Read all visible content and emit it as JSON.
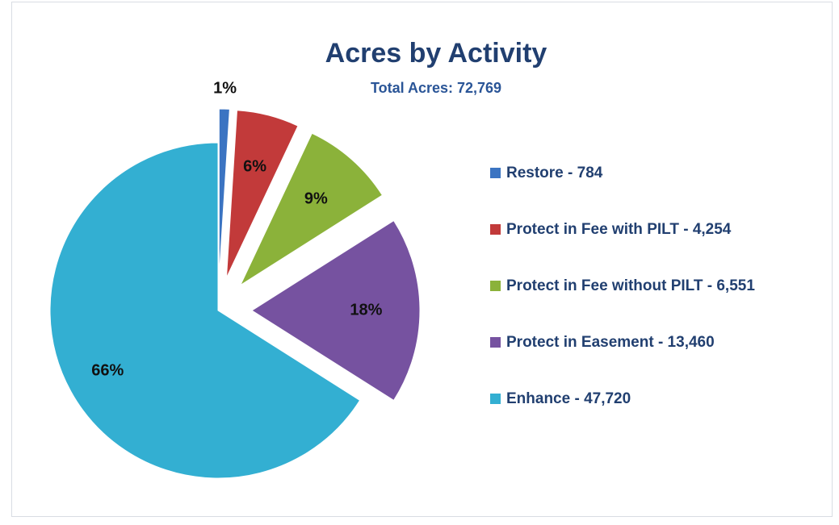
{
  "chart_data": {
    "type": "pie",
    "title": "Acres by Activity",
    "subtitle": "Total Acres: 72,769",
    "categories": [
      "Restore - 784",
      "Protect in Fee with PILT - 4,254",
      "Protect in Fee without PILT - 6,551",
      "Protect in Easement - 13,460",
      "Enhance - 47,720"
    ],
    "values": [
      1,
      6,
      9,
      18,
      66
    ],
    "value_labels": [
      "1%",
      "6%",
      "9%",
      "18%",
      "66%"
    ],
    "colors": [
      "#3b74c2",
      "#c23a3a",
      "#8bb23a",
      "#7652a0",
      "#33afd2"
    ],
    "legend": "right"
  }
}
